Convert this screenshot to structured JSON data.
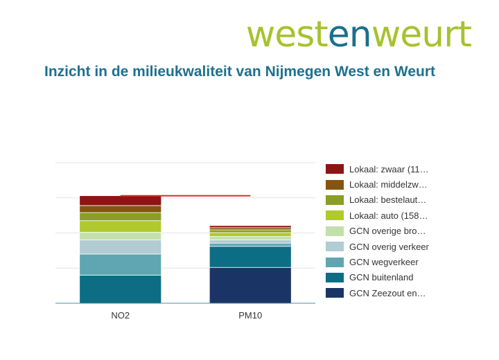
{
  "header": {
    "brand_part1": "west",
    "brand_part2": "en",
    "brand_part3": "weurt",
    "subtitle": "Inzicht in de milieukwaliteit van Nijmegen West en Weurt"
  },
  "chart_data": {
    "type": "bar",
    "stacked": true,
    "categories": [
      "NO2",
      "PM10"
    ],
    "series": [
      {
        "name": "GCN Zeezout en…",
        "color": "#1b3466",
        "values": [
          0,
          10.2
        ]
      },
      {
        "name": "GCN buitenland",
        "color": "#0d6d85",
        "values": [
          8.0,
          6.0
        ]
      },
      {
        "name": "GCN wegverkeer",
        "color": "#5fa6b2",
        "values": [
          6.0,
          0.9
        ]
      },
      {
        "name": "GCN overig verkeer",
        "color": "#b1ccd2",
        "values": [
          4.0,
          0.9
        ]
      },
      {
        "name": "GCN overige bro…",
        "color": "#c3e0aa",
        "values": [
          2.2,
          1.0
        ]
      },
      {
        "name": "Lokaal: auto (158…",
        "color": "#b0c92d",
        "values": [
          3.3,
          1.1
        ]
      },
      {
        "name": "Lokaal: bestelaut…",
        "color": "#8a9d27",
        "values": [
          2.3,
          0.8
        ]
      },
      {
        "name": "Lokaal: middelzw…",
        "color": "#855410",
        "values": [
          2.0,
          0.6
        ]
      },
      {
        "name": "Lokaal: zwaar (11…",
        "color": "#8e1414",
        "values": [
          2.8,
          0.6
        ]
      }
    ],
    "reference_line": {
      "color": "#e8282b",
      "value": 30.6
    },
    "ylim": [
      0,
      40
    ],
    "grid": true,
    "legend_position": "right",
    "xlabel": "",
    "ylabel": ""
  }
}
